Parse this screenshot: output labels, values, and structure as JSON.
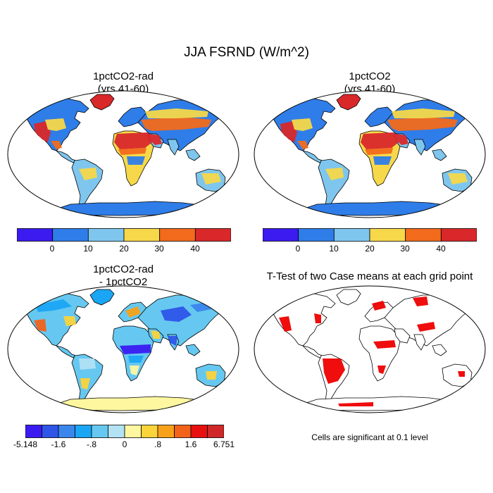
{
  "figure": {
    "title": "JJA FSRND (W/m^2)"
  },
  "panels": [
    {
      "title_line1": "1pctCO2-rad",
      "title_line2": "(yrs 41-60)"
    },
    {
      "title_line1": "1pctCO2",
      "title_line2": "(yrs 41-60)"
    },
    {
      "title_line1": "1pctCO2-rad",
      "title_line2": "- 1pctCO2"
    },
    {
      "title_line1": "T-Test of two Case means at each grid point",
      "title_line2": ""
    }
  ],
  "colorbar_abs": {
    "colors": [
      "#3b1bf0",
      "#2f7de8",
      "#7ec6ee",
      "#f6d84a",
      "#f26a1b",
      "#d9282a"
    ],
    "labels": [
      "0",
      "10",
      "20",
      "30",
      "40"
    ]
  },
  "colorbar_diff": {
    "colors": [
      "#3a1cf2",
      "#2e55e8",
      "#3a86ec",
      "#1aa6f4",
      "#66c8f0",
      "#b2e2f4",
      "#fef7a0",
      "#fbd33a",
      "#f7a21a",
      "#f2621a",
      "#e8100e",
      "#d02828"
    ],
    "labels": [
      "-5.148",
      "-1.6",
      "-.8",
      "0",
      ".8",
      "1.6",
      "6.751"
    ]
  },
  "ttest": {
    "sig_color": "#ee0000",
    "note": "Cells are significant at 0.1 level"
  }
}
